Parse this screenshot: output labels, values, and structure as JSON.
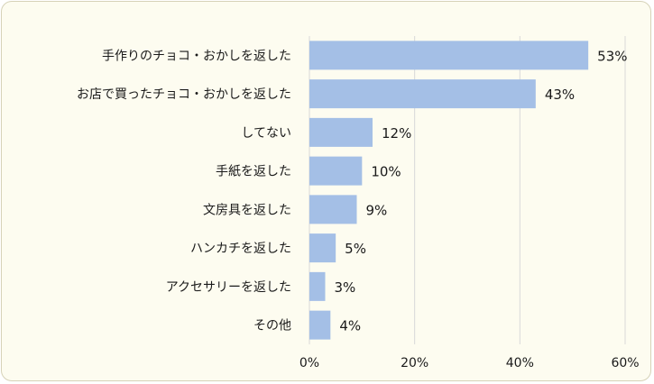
{
  "chart_data": {
    "type": "bar",
    "orientation": "horizontal",
    "categories": [
      "手作りのチョコ・おかしを返した",
      "お店で買ったチョコ・おかしを返した",
      "してない",
      "手紙を返した",
      "文房具を返した",
      "ハンカチを返した",
      "アクセサリーを返した",
      "その他"
    ],
    "values": [
      53,
      43,
      12,
      10,
      9,
      5,
      3,
      4
    ],
    "value_labels": [
      "53%",
      "43%",
      "12%",
      "10%",
      "9%",
      "5%",
      "3%",
      "4%"
    ],
    "xlim": [
      0,
      60
    ],
    "x_ticks": [
      0,
      20,
      40,
      60
    ],
    "x_tick_labels": [
      "0%",
      "20%",
      "40%",
      "60%"
    ],
    "grid": true,
    "bar_color": "#a4bfe6",
    "grid_color": "#d9d9d9",
    "background_color": "#fdfcf0"
  }
}
